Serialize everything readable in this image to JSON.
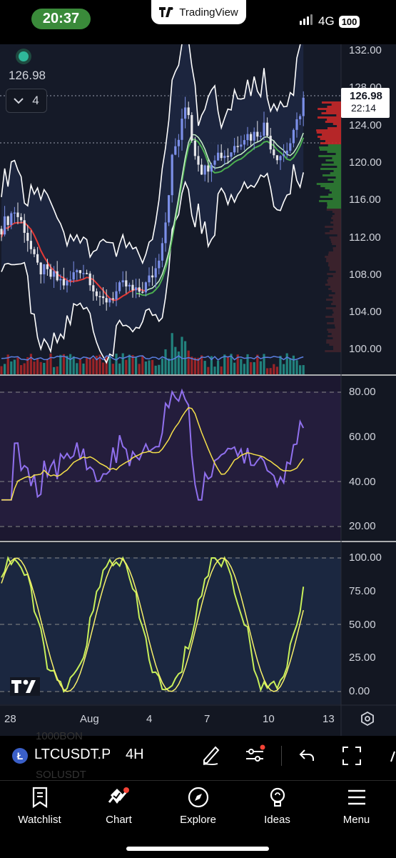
{
  "status_bar": {
    "time": "20:37",
    "app_name": "TradingView",
    "network": "4G",
    "battery": "100"
  },
  "chart": {
    "price_label": "126.98",
    "interval_count": "4",
    "current_price": "126.98",
    "countdown": "22:14",
    "price_axis": [
      "132.00",
      "128.00",
      "124.00",
      "120.00",
      "116.00",
      "112.00",
      "108.00",
      "104.00",
      "100.00"
    ],
    "rsi_axis": [
      "80.00",
      "60.00",
      "40.00",
      "20.00"
    ],
    "stoch_axis": [
      "100.00",
      "75.00",
      "50.00",
      "25.00",
      "0.00"
    ],
    "time_axis": [
      "28",
      "Aug",
      "4",
      "7",
      "10",
      "13"
    ],
    "colors": {
      "bg": "#131722",
      "up": "#7b8fe8",
      "down": "#e0e0e0",
      "rsi": "#8f6be8",
      "ma_yellow": "#f5e04a",
      "stoch_green": "#c8f05a",
      "stoch_yellow": "#f7f06a"
    }
  },
  "toolbar": {
    "symbol": "LTCUSDT.P",
    "timeframe": "4H",
    "ghost_symbols": [
      "1000BON",
      "SOLUSDT"
    ]
  },
  "nav": [
    {
      "label": "Watchlist",
      "icon": "bookmark-icon"
    },
    {
      "label": "Chart",
      "icon": "chart-icon"
    },
    {
      "label": "Explore",
      "icon": "compass-icon"
    },
    {
      "label": "Ideas",
      "icon": "lightbulb-icon"
    },
    {
      "label": "Menu",
      "icon": "menu-icon"
    }
  ]
}
